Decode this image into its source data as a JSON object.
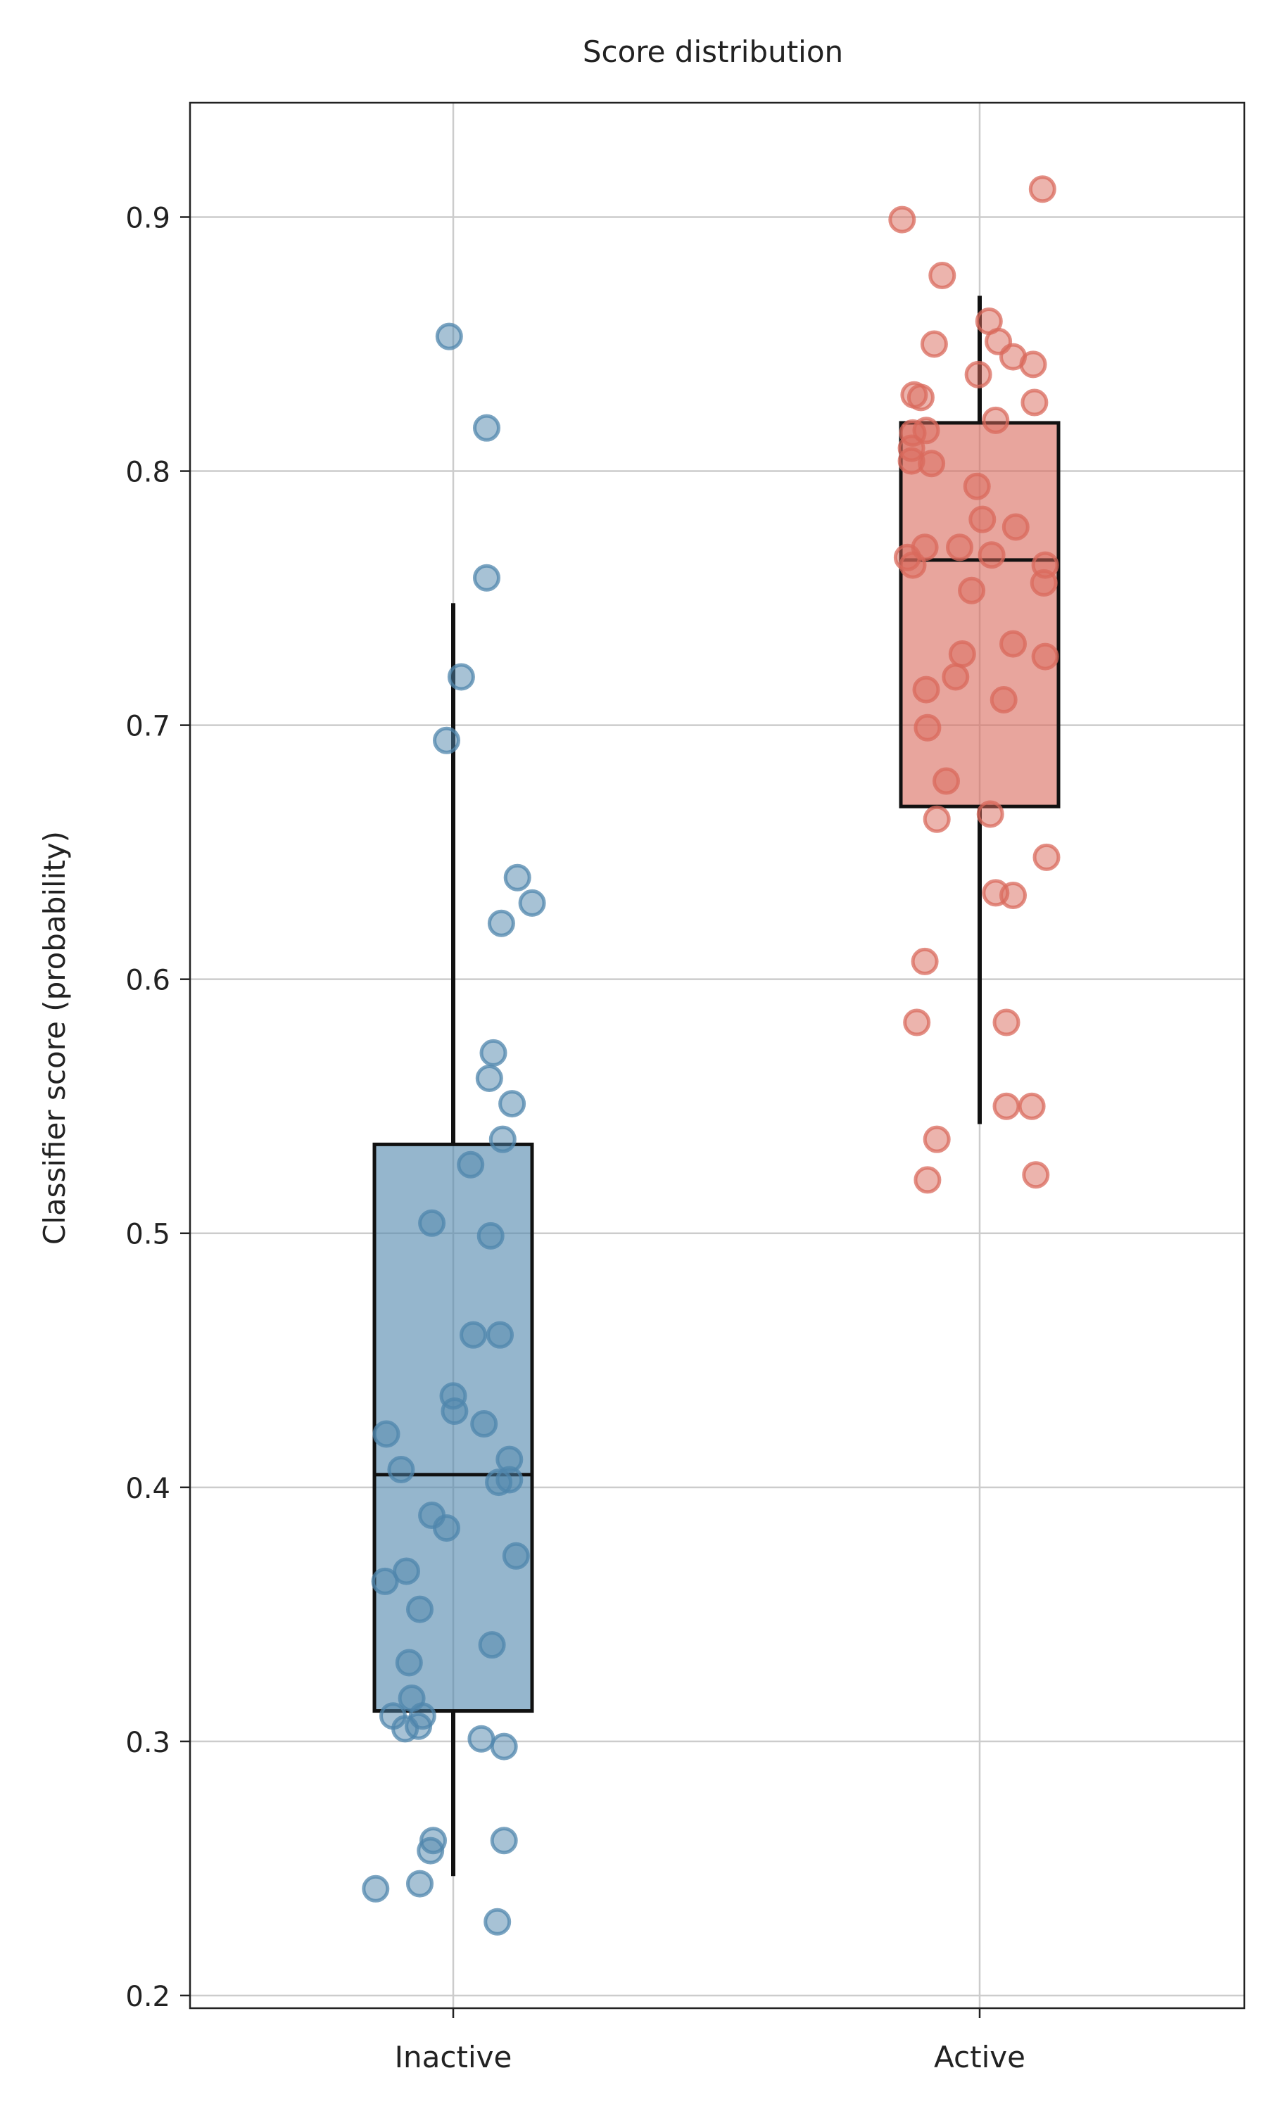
{
  "chart_data": {
    "type": "box",
    "title": "Score distribution",
    "xlabel": "",
    "ylabel": "Classifier score (probability)",
    "categories": [
      "Inactive",
      "Active"
    ],
    "ylim": [
      0.195,
      0.945
    ],
    "yticks": [
      0.2,
      0.3,
      0.4,
      0.5,
      0.6,
      0.7,
      0.8,
      0.9
    ],
    "ytick_labels": [
      "0.2",
      "0.3",
      "0.4",
      "0.5",
      "0.6",
      "0.7",
      "0.8",
      "0.9"
    ],
    "grid": true,
    "series": [
      {
        "category": "Inactive",
        "color": "#4f86ac",
        "box": {
          "q1": 0.312,
          "median": 0.405,
          "q3": 0.535,
          "whisker_low": 0.247,
          "whisker_high": 0.748
        },
        "points": [
          {
            "x": -0.03,
            "y": 0.853
          },
          {
            "x": 0.25,
            "y": 0.817
          },
          {
            "x": 0.25,
            "y": 0.758
          },
          {
            "x": 0.06,
            "y": 0.719
          },
          {
            "x": -0.05,
            "y": 0.694
          },
          {
            "x": 0.48,
            "y": 0.64
          },
          {
            "x": 0.59,
            "y": 0.63
          },
          {
            "x": 0.36,
            "y": 0.622
          },
          {
            "x": 0.3,
            "y": 0.571
          },
          {
            "x": 0.27,
            "y": 0.561
          },
          {
            "x": 0.44,
            "y": 0.551
          },
          {
            "x": 0.37,
            "y": 0.537
          },
          {
            "x": 0.13,
            "y": 0.527
          },
          {
            "x": -0.16,
            "y": 0.504
          },
          {
            "x": 0.28,
            "y": 0.499
          },
          {
            "x": 0.35,
            "y": 0.46
          },
          {
            "x": 0.15,
            "y": 0.46
          },
          {
            "x": 0.0,
            "y": 0.436
          },
          {
            "x": 0.01,
            "y": 0.43
          },
          {
            "x": 0.23,
            "y": 0.425
          },
          {
            "x": -0.5,
            "y": 0.421
          },
          {
            "x": 0.42,
            "y": 0.411
          },
          {
            "x": -0.39,
            "y": 0.407
          },
          {
            "x": 0.42,
            "y": 0.403
          },
          {
            "x": 0.34,
            "y": 0.402
          },
          {
            "x": -0.16,
            "y": 0.389
          },
          {
            "x": -0.05,
            "y": 0.384
          },
          {
            "x": 0.47,
            "y": 0.373
          },
          {
            "x": -0.35,
            "y": 0.367
          },
          {
            "x": -0.51,
            "y": 0.363
          },
          {
            "x": -0.25,
            "y": 0.352
          },
          {
            "x": 0.29,
            "y": 0.338
          },
          {
            "x": -0.33,
            "y": 0.331
          },
          {
            "x": -0.31,
            "y": 0.317
          },
          {
            "x": -0.23,
            "y": 0.31
          },
          {
            "x": -0.45,
            "y": 0.31
          },
          {
            "x": -0.26,
            "y": 0.306
          },
          {
            "x": -0.36,
            "y": 0.305
          },
          {
            "x": 0.21,
            "y": 0.301
          },
          {
            "x": 0.38,
            "y": 0.298
          },
          {
            "x": -0.15,
            "y": 0.261
          },
          {
            "x": 0.38,
            "y": 0.261
          },
          {
            "x": -0.17,
            "y": 0.257
          },
          {
            "x": -0.25,
            "y": 0.244
          },
          {
            "x": -0.58,
            "y": 0.242
          },
          {
            "x": 0.33,
            "y": 0.229
          }
        ]
      },
      {
        "category": "Active",
        "color": "#d9695c",
        "box": {
          "q1": 0.668,
          "median": 0.765,
          "q3": 0.819,
          "whisker_low": 0.543,
          "whisker_high": 0.869
        },
        "points": [
          {
            "x": 0.47,
            "y": 0.911
          },
          {
            "x": -0.58,
            "y": 0.899
          },
          {
            "x": -0.28,
            "y": 0.877
          },
          {
            "x": -0.34,
            "y": 0.85
          },
          {
            "x": 0.07,
            "y": 0.859
          },
          {
            "x": 0.14,
            "y": 0.851
          },
          {
            "x": 0.25,
            "y": 0.845
          },
          {
            "x": 0.4,
            "y": 0.842
          },
          {
            "x": -0.01,
            "y": 0.838
          },
          {
            "x": -0.49,
            "y": 0.83
          },
          {
            "x": -0.44,
            "y": 0.829
          },
          {
            "x": 0.41,
            "y": 0.827
          },
          {
            "x": 0.12,
            "y": 0.82
          },
          {
            "x": -0.4,
            "y": 0.816
          },
          {
            "x": -0.5,
            "y": 0.815
          },
          {
            "x": -0.51,
            "y": 0.809
          },
          {
            "x": -0.51,
            "y": 0.804
          },
          {
            "x": -0.36,
            "y": 0.803
          },
          {
            "x": -0.02,
            "y": 0.794
          },
          {
            "x": 0.02,
            "y": 0.781
          },
          {
            "x": 0.27,
            "y": 0.778
          },
          {
            "x": -0.15,
            "y": 0.77
          },
          {
            "x": -0.41,
            "y": 0.77
          },
          {
            "x": 0.09,
            "y": 0.767
          },
          {
            "x": -0.54,
            "y": 0.766
          },
          {
            "x": -0.5,
            "y": 0.763
          },
          {
            "x": 0.49,
            "y": 0.763
          },
          {
            "x": 0.48,
            "y": 0.756
          },
          {
            "x": -0.06,
            "y": 0.753
          },
          {
            "x": 0.25,
            "y": 0.732
          },
          {
            "x": -0.13,
            "y": 0.728
          },
          {
            "x": 0.49,
            "y": 0.727
          },
          {
            "x": -0.18,
            "y": 0.719
          },
          {
            "x": -0.4,
            "y": 0.714
          },
          {
            "x": 0.18,
            "y": 0.71
          },
          {
            "x": -0.39,
            "y": 0.699
          },
          {
            "x": -0.25,
            "y": 0.678
          },
          {
            "x": 0.08,
            "y": 0.665
          },
          {
            "x": -0.32,
            "y": 0.663
          },
          {
            "x": 0.5,
            "y": 0.648
          },
          {
            "x": 0.12,
            "y": 0.634
          },
          {
            "x": 0.25,
            "y": 0.633
          },
          {
            "x": -0.41,
            "y": 0.607
          },
          {
            "x": 0.2,
            "y": 0.583
          },
          {
            "x": -0.47,
            "y": 0.583
          },
          {
            "x": -0.32,
            "y": 0.537
          },
          {
            "x": 0.2,
            "y": 0.55
          },
          {
            "x": 0.39,
            "y": 0.55
          },
          {
            "x": 0.42,
            "y": 0.523
          },
          {
            "x": -0.39,
            "y": 0.521
          }
        ]
      }
    ]
  }
}
